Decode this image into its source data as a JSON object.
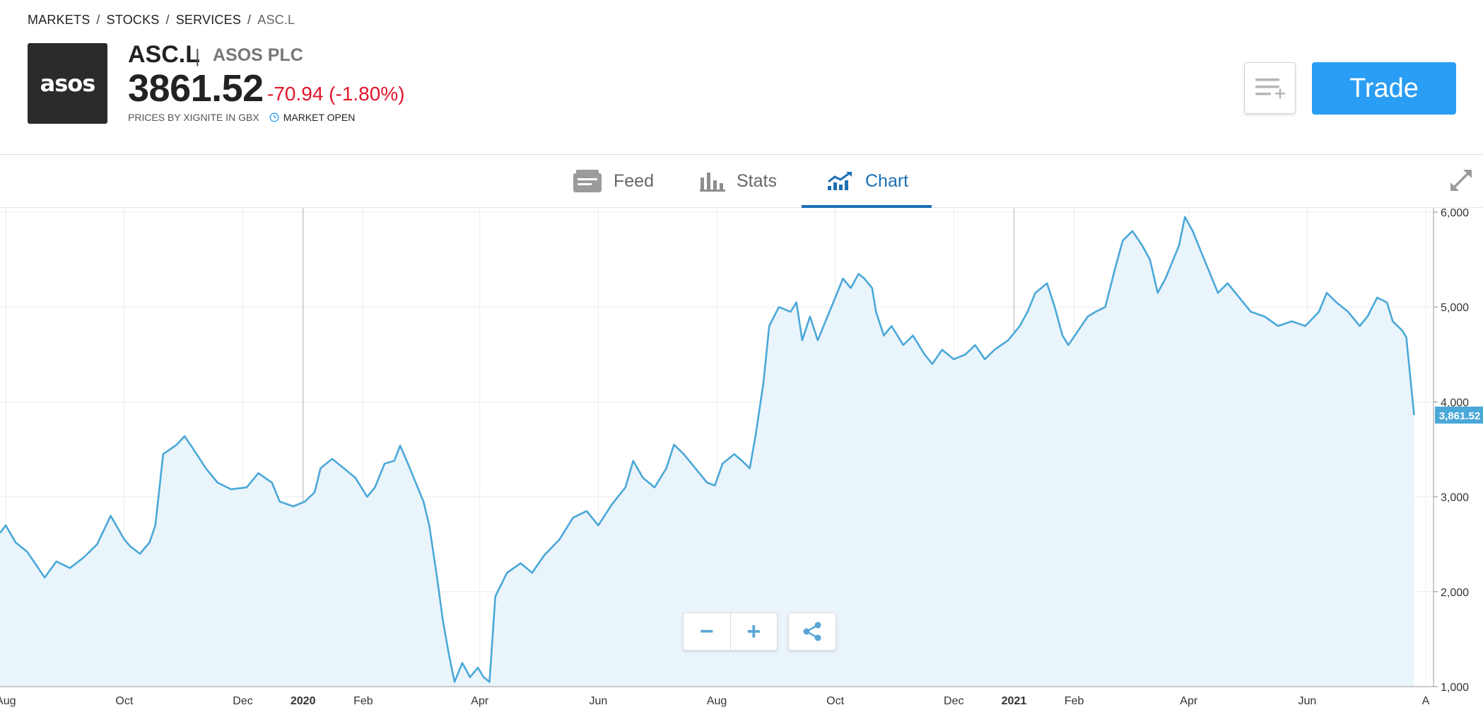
{
  "breadcrumb": {
    "items": [
      "MARKETS",
      "STOCKS",
      "SERVICES",
      "ASC.L"
    ],
    "separator": "/"
  },
  "instrument": {
    "logo_text": "asos",
    "symbol": "ASC.L",
    "separator": "|",
    "name": "ASOS PLC",
    "price": "3861.52",
    "change": "-70.94 (-1.80%)",
    "source": "PRICES BY XIGNITE IN GBX",
    "market_status": "MARKET OPEN"
  },
  "actions": {
    "trade_label": "Trade",
    "watchlist_icon": "add-to-watchlist-icon"
  },
  "tabs": [
    {
      "label": "Feed",
      "icon": "feed-icon",
      "active": false
    },
    {
      "label": "Stats",
      "icon": "stats-icon",
      "active": false
    },
    {
      "label": "Chart",
      "icon": "chart-icon",
      "active": true
    }
  ],
  "chart_controls": {
    "zoom_out": "−",
    "zoom_in": "+",
    "share_icon": "share-icon"
  },
  "colors": {
    "accent": "#2a9df4",
    "negative": "#e0162b",
    "line": "#4aa8d8",
    "active_tab": "#1b6fb3"
  },
  "chart_data": {
    "type": "area",
    "title": "",
    "xlabel": "",
    "ylabel": "",
    "x_axis": {
      "start": "2019-07-29",
      "end": "2021-08-05",
      "ticks": [
        {
          "date": "2019-08-01",
          "label": "Aug",
          "bold": false
        },
        {
          "date": "2019-10-01",
          "label": "Oct",
          "bold": false
        },
        {
          "date": "2019-12-01",
          "label": "Dec",
          "bold": false
        },
        {
          "date": "2020-01-01",
          "label": "2020",
          "bold": true
        },
        {
          "date": "2020-02-01",
          "label": "Feb",
          "bold": false
        },
        {
          "date": "2020-04-01",
          "label": "Apr",
          "bold": false
        },
        {
          "date": "2020-06-01",
          "label": "Jun",
          "bold": false
        },
        {
          "date": "2020-08-01",
          "label": "Aug",
          "bold": false
        },
        {
          "date": "2020-10-01",
          "label": "Oct",
          "bold": false
        },
        {
          "date": "2020-12-01",
          "label": "Dec",
          "bold": false
        },
        {
          "date": "2021-01-01",
          "label": "2021",
          "bold": true
        },
        {
          "date": "2021-02-01",
          "label": "Feb",
          "bold": false
        },
        {
          "date": "2021-04-01",
          "label": "Apr",
          "bold": false
        },
        {
          "date": "2021-06-01",
          "label": "Jun",
          "bold": false
        },
        {
          "date": "2021-08-01",
          "label": "A",
          "bold": false
        }
      ]
    },
    "y_axis": {
      "min": 1000,
      "max": 6000,
      "ticks": [
        1000,
        2000,
        3000,
        4000,
        5000,
        6000
      ],
      "tick_labels": [
        "1,000",
        "2,000",
        "3,000",
        "4,000",
        "5,000",
        "6,000"
      ],
      "position": "right"
    },
    "grid": true,
    "current_value_label": "3,861.52",
    "current_value": 3861.52,
    "series": [
      {
        "points": [
          [
            "2019-07-29",
            2620
          ],
          [
            "2019-08-01",
            2700
          ],
          [
            "2019-08-06",
            2520
          ],
          [
            "2019-08-12",
            2420
          ],
          [
            "2019-08-16",
            2300
          ],
          [
            "2019-08-21",
            2150
          ],
          [
            "2019-08-27",
            2320
          ],
          [
            "2019-09-03",
            2250
          ],
          [
            "2019-09-10",
            2360
          ],
          [
            "2019-09-17",
            2500
          ],
          [
            "2019-09-24",
            2800
          ],
          [
            "2019-10-01",
            2550
          ],
          [
            "2019-10-04",
            2480
          ],
          [
            "2019-10-09",
            2400
          ],
          [
            "2019-10-14",
            2520
          ],
          [
            "2019-10-17",
            2700
          ],
          [
            "2019-10-21",
            3450
          ],
          [
            "2019-10-28",
            3550
          ],
          [
            "2019-11-01",
            3640
          ],
          [
            "2019-11-05",
            3520
          ],
          [
            "2019-11-12",
            3300
          ],
          [
            "2019-11-18",
            3150
          ],
          [
            "2019-11-25",
            3080
          ],
          [
            "2019-12-03",
            3100
          ],
          [
            "2019-12-09",
            3250
          ],
          [
            "2019-12-16",
            3150
          ],
          [
            "2019-12-20",
            2950
          ],
          [
            "2019-12-27",
            2900
          ],
          [
            "2020-01-02",
            2950
          ],
          [
            "2020-01-07",
            3050
          ],
          [
            "2020-01-10",
            3300
          ],
          [
            "2020-01-16",
            3400
          ],
          [
            "2020-01-22",
            3300
          ],
          [
            "2020-01-28",
            3200
          ],
          [
            "2020-02-03",
            3000
          ],
          [
            "2020-02-07",
            3100
          ],
          [
            "2020-02-12",
            3350
          ],
          [
            "2020-02-17",
            3380
          ],
          [
            "2020-02-20",
            3540
          ],
          [
            "2020-02-24",
            3350
          ],
          [
            "2020-02-28",
            3150
          ],
          [
            "2020-03-03",
            2950
          ],
          [
            "2020-03-06",
            2700
          ],
          [
            "2020-03-10",
            2150
          ],
          [
            "2020-03-13",
            1700
          ],
          [
            "2020-03-16",
            1350
          ],
          [
            "2020-03-19",
            1050
          ],
          [
            "2020-03-23",
            1250
          ],
          [
            "2020-03-27",
            1100
          ],
          [
            "2020-03-31",
            1200
          ],
          [
            "2020-04-03",
            1100
          ],
          [
            "2020-04-06",
            1050
          ],
          [
            "2020-04-09",
            1950
          ],
          [
            "2020-04-15",
            2200
          ],
          [
            "2020-04-22",
            2300
          ],
          [
            "2020-04-28",
            2200
          ],
          [
            "2020-05-04",
            2380
          ],
          [
            "2020-05-12",
            2550
          ],
          [
            "2020-05-19",
            2780
          ],
          [
            "2020-05-26",
            2850
          ],
          [
            "2020-06-01",
            2700
          ],
          [
            "2020-06-08",
            2920
          ],
          [
            "2020-06-15",
            3100
          ],
          [
            "2020-06-19",
            3380
          ],
          [
            "2020-06-24",
            3200
          ],
          [
            "2020-06-30",
            3100
          ],
          [
            "2020-07-06",
            3300
          ],
          [
            "2020-07-10",
            3550
          ],
          [
            "2020-07-15",
            3450
          ],
          [
            "2020-07-21",
            3300
          ],
          [
            "2020-07-27",
            3150
          ],
          [
            "2020-07-31",
            3120
          ],
          [
            "2020-08-04",
            3350
          ],
          [
            "2020-08-10",
            3450
          ],
          [
            "2020-08-14",
            3380
          ],
          [
            "2020-08-18",
            3300
          ],
          [
            "2020-08-21",
            3650
          ],
          [
            "2020-08-25",
            4200
          ],
          [
            "2020-08-28",
            4800
          ],
          [
            "2020-09-02",
            5000
          ],
          [
            "2020-09-08",
            4950
          ],
          [
            "2020-09-11",
            5050
          ],
          [
            "2020-09-14",
            4650
          ],
          [
            "2020-09-18",
            4900
          ],
          [
            "2020-09-22",
            4650
          ],
          [
            "2020-09-25",
            4800
          ],
          [
            "2020-09-30",
            5050
          ],
          [
            "2020-10-05",
            5300
          ],
          [
            "2020-10-09",
            5200
          ],
          [
            "2020-10-13",
            5350
          ],
          [
            "2020-10-16",
            5300
          ],
          [
            "2020-10-20",
            5200
          ],
          [
            "2020-10-22",
            4950
          ],
          [
            "2020-10-26",
            4700
          ],
          [
            "2020-10-30",
            4800
          ],
          [
            "2020-11-05",
            4600
          ],
          [
            "2020-11-10",
            4700
          ],
          [
            "2020-11-16",
            4500
          ],
          [
            "2020-11-20",
            4400
          ],
          [
            "2020-11-25",
            4550
          ],
          [
            "2020-12-01",
            4450
          ],
          [
            "2020-12-07",
            4500
          ],
          [
            "2020-12-12",
            4600
          ],
          [
            "2020-12-17",
            4450
          ],
          [
            "2020-12-22",
            4550
          ],
          [
            "2020-12-29",
            4650
          ],
          [
            "2021-01-04",
            4800
          ],
          [
            "2021-01-08",
            4950
          ],
          [
            "2021-01-12",
            5150
          ],
          [
            "2021-01-18",
            5250
          ],
          [
            "2021-01-22",
            5000
          ],
          [
            "2021-01-26",
            4700
          ],
          [
            "2021-01-29",
            4600
          ],
          [
            "2021-02-03",
            4750
          ],
          [
            "2021-02-08",
            4900
          ],
          [
            "2021-02-12",
            4950
          ],
          [
            "2021-02-17",
            5000
          ],
          [
            "2021-02-22",
            5400
          ],
          [
            "2021-02-26",
            5700
          ],
          [
            "2021-03-03",
            5800
          ],
          [
            "2021-03-08",
            5650
          ],
          [
            "2021-03-12",
            5500
          ],
          [
            "2021-03-16",
            5150
          ],
          [
            "2021-03-20",
            5300
          ],
          [
            "2021-03-24",
            5500
          ],
          [
            "2021-03-27",
            5650
          ],
          [
            "2021-03-30",
            5950
          ],
          [
            "2021-04-03",
            5800
          ],
          [
            "2021-04-07",
            5600
          ],
          [
            "2021-04-12",
            5350
          ],
          [
            "2021-04-16",
            5150
          ],
          [
            "2021-04-21",
            5250
          ],
          [
            "2021-04-27",
            5100
          ],
          [
            "2021-05-03",
            4950
          ],
          [
            "2021-05-10",
            4900
          ],
          [
            "2021-05-17",
            4800
          ],
          [
            "2021-05-24",
            4850
          ],
          [
            "2021-05-31",
            4800
          ],
          [
            "2021-06-07",
            4950
          ],
          [
            "2021-06-11",
            5150
          ],
          [
            "2021-06-16",
            5050
          ],
          [
            "2021-06-22",
            4950
          ],
          [
            "2021-06-28",
            4800
          ],
          [
            "2021-07-02",
            4900
          ],
          [
            "2021-07-07",
            5100
          ],
          [
            "2021-07-12",
            5050
          ],
          [
            "2021-07-15",
            4850
          ],
          [
            "2021-07-20",
            4750
          ],
          [
            "2021-07-22",
            4680
          ],
          [
            "2021-07-26",
            3861.52
          ]
        ]
      }
    ]
  }
}
